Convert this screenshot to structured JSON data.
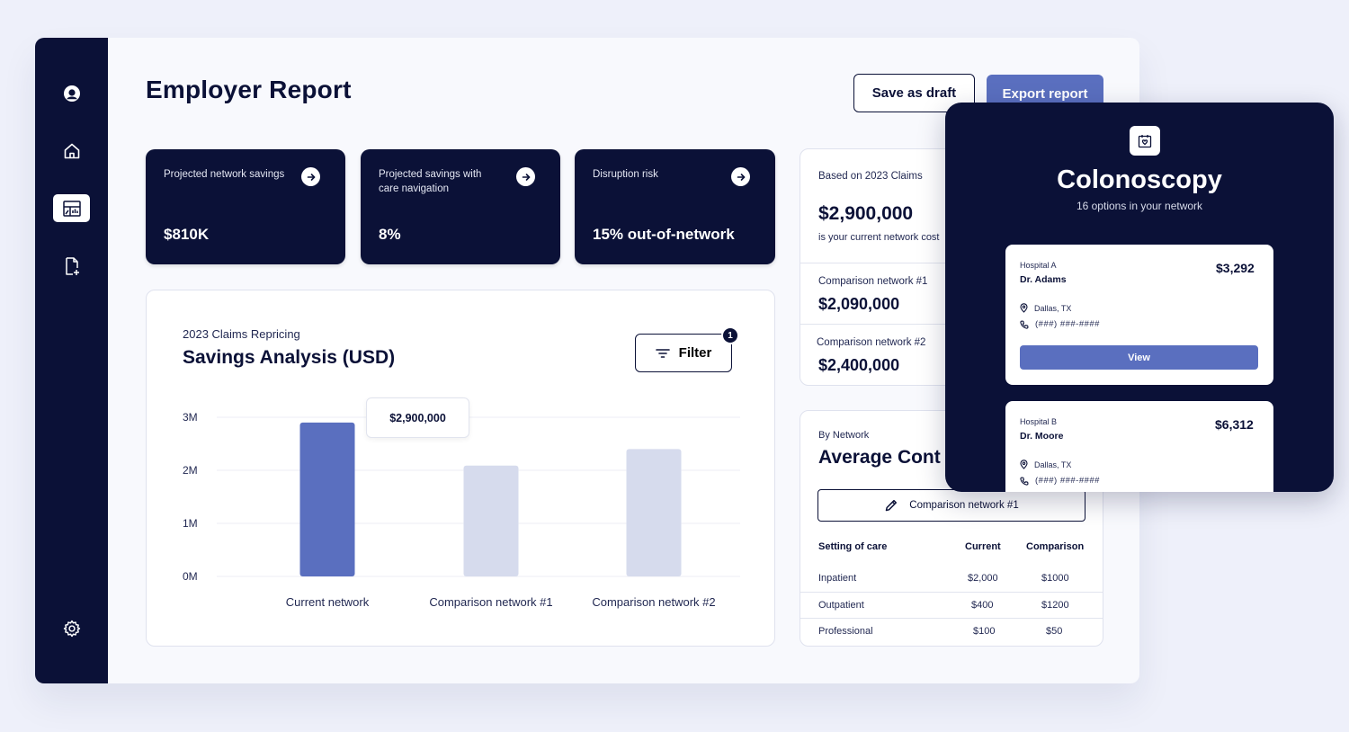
{
  "page": {
    "title": "Employer Report"
  },
  "sidebar": {
    "items": [
      {
        "icon": "user-avatar-icon"
      },
      {
        "icon": "home-icon"
      },
      {
        "icon": "report-dashboard-icon",
        "active": true
      },
      {
        "icon": "add-document-icon"
      },
      {
        "icon": "gear-icon"
      }
    ]
  },
  "header": {
    "save_label": "Save as draft",
    "export_label": "Export report"
  },
  "kpis": [
    {
      "label": "Projected network savings",
      "value": "$810K"
    },
    {
      "label": "Projected savings with care navigation",
      "value": "8%"
    },
    {
      "label": "Disruption risk",
      "value": "15% out-of-network"
    }
  ],
  "savings_chart": {
    "subtitle": "2023 Claims Repricing",
    "title": "Savings Analysis (USD)",
    "filter_label": "Filter",
    "filter_count": "1",
    "tooltip": "$2,900,000"
  },
  "chart_data": {
    "type": "bar",
    "title": "Savings Analysis (USD)",
    "categories": [
      "Current network",
      "Comparison network #1",
      "Comparison network #2"
    ],
    "values": [
      2900000,
      2090000,
      2400000
    ],
    "yticks": [
      "0M",
      "1M",
      "2M",
      "3M"
    ],
    "ylim": [
      0,
      3000000
    ],
    "highlighted_index": 0,
    "colors": {
      "highlight": "#5a6fbf",
      "muted": "#d6dbed"
    },
    "grid": true
  },
  "claims": {
    "subtitle": "Based on 2023 Claims",
    "value": "$2,900,000",
    "note": "is your current network cost",
    "comparisons": [
      {
        "label": "Comparison network #1",
        "value": "$2,090,000"
      },
      {
        "label": "Comparison network #2",
        "value": "$2,400,000"
      }
    ]
  },
  "average_cost": {
    "subtitle": "By Network",
    "title": "Average Cont",
    "selected_network": "Comparison network #1",
    "columns": [
      "Setting of care",
      "Current",
      "Comparison"
    ],
    "rows": [
      {
        "setting": "Inpatient",
        "current": "$2,000",
        "comparison": "$1000"
      },
      {
        "setting": "Outpatient",
        "current": "$400",
        "comparison": "$1200"
      },
      {
        "setting": "Professional",
        "current": "$100",
        "comparison": "$50"
      }
    ]
  },
  "overlay": {
    "title": "Colonoscopy",
    "subtitle": "16 options in your network",
    "hospitals": [
      {
        "hospital": "Hospital A",
        "doctor": "Dr. Adams",
        "price": "$3,292",
        "location": "Dallas, TX",
        "phone": "(###) ###-####",
        "view_label": "View"
      },
      {
        "hospital": "Hospital B",
        "doctor": "Dr. Moore",
        "price": "$6,312",
        "location": "Dallas, TX",
        "phone": "(###) ###-####"
      }
    ]
  },
  "colors": {
    "navy": "#0b1137",
    "accent": "#5a6fbf",
    "background": "#eef0fa"
  }
}
